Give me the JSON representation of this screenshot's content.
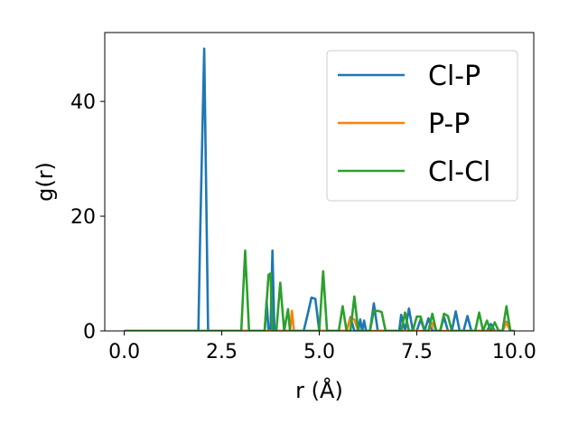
{
  "chart_data": {
    "type": "line",
    "title": "",
    "xlabel": "r (Å)",
    "ylabel": "g(r)",
    "xlim": [
      -0.5,
      10.5
    ],
    "ylim": [
      0,
      52
    ],
    "xticks": [
      0.0,
      2.5,
      5.0,
      7.5,
      10.0
    ],
    "xtick_labels": [
      "0.0",
      "2.5",
      "5.0",
      "7.5",
      "10.0"
    ],
    "yticks": [
      0,
      20,
      40
    ],
    "ytick_labels": [
      "0",
      "20",
      "40"
    ],
    "grid": false,
    "legend_position": "top-right",
    "series": [
      {
        "name": "Cl-P",
        "color": "#1f77b4",
        "x": [
          0.0,
          1.9,
          1.95,
          2.05,
          2.15,
          2.2,
          3.5,
          3.6,
          3.65,
          3.7,
          3.75,
          3.8,
          3.85,
          3.9,
          4.3,
          4.5,
          4.6,
          4.7,
          4.8,
          4.9,
          5.0,
          5.1,
          5.5,
          5.6,
          5.7,
          5.8,
          5.9,
          6.0,
          6.05,
          6.1,
          6.15,
          6.2,
          6.3,
          6.4,
          6.5,
          6.55,
          6.6,
          6.7,
          6.8,
          6.9,
          7.0,
          7.05,
          7.1,
          7.2,
          7.3,
          7.4,
          7.5,
          7.6,
          7.7,
          7.8,
          7.9,
          8.0,
          8.1,
          8.2,
          8.3,
          8.4,
          8.5,
          8.6,
          8.7,
          8.8,
          8.9,
          9.0,
          9.1,
          9.2,
          9.3,
          9.4,
          9.5,
          9.6,
          9.7,
          9.8,
          9.9
        ],
        "y": [
          0,
          0,
          18,
          49.2,
          0,
          0,
          0,
          0,
          5.2,
          0,
          0,
          14,
          0,
          0,
          0,
          0,
          0,
          2.8,
          5.8,
          5.6,
          0,
          0,
          0,
          0,
          0,
          2.4,
          0,
          0,
          2.0,
          0,
          1.8,
          0,
          0,
          4.8,
          0,
          0,
          0,
          0,
          0,
          0,
          0,
          0,
          2.8,
          0,
          3.9,
          0,
          0,
          2.0,
          0,
          2.2,
          0,
          0,
          0,
          2.4,
          0,
          0,
          3.4,
          0,
          0,
          2.6,
          0,
          0,
          0,
          0,
          0,
          1.2,
          0,
          0,
          0,
          1.6,
          0
        ]
      },
      {
        "name": "P-P",
        "color": "#ff7f0e",
        "x": [
          0.0,
          4.15,
          4.25,
          4.3,
          4.35,
          5.7,
          5.8,
          5.9,
          6.0,
          7.8,
          7.9,
          8.0,
          9.7,
          9.8,
          9.9,
          10.0
        ],
        "y": [
          0,
          0,
          0,
          3.5,
          0,
          0,
          2.2,
          2.0,
          0,
          0,
          1.4,
          0,
          0,
          1.5,
          0,
          0
        ]
      },
      {
        "name": "Cl-Cl",
        "color": "#2ca02c",
        "x": [
          0.0,
          3.0,
          3.1,
          3.2,
          3.5,
          3.6,
          3.7,
          3.75,
          3.8,
          3.9,
          4.0,
          4.1,
          4.2,
          4.25,
          4.3,
          4.9,
          5.0,
          5.1,
          5.2,
          5.5,
          5.6,
          5.7,
          5.8,
          5.9,
          6.0,
          6.1,
          6.2,
          6.3,
          6.4,
          6.5,
          6.6,
          6.7,
          7.1,
          7.2,
          7.3,
          7.4,
          7.5,
          7.6,
          7.7,
          7.8,
          7.9,
          8.0,
          8.1,
          8.2,
          8.3,
          8.4,
          8.5,
          8.6,
          8.7,
          8.8,
          8.9,
          9.0,
          9.1,
          9.2,
          9.3,
          9.4,
          9.5,
          9.6,
          9.7,
          9.8,
          9.9,
          10.0
        ],
        "y": [
          0,
          0,
          14,
          0,
          0,
          0,
          9.8,
          10,
          0,
          0,
          8.4,
          0,
          3.8,
          0,
          0,
          0,
          0,
          10.4,
          0,
          0,
          4.3,
          0,
          0,
          6.0,
          0,
          0,
          0,
          0,
          3.5,
          3.5,
          3.3,
          0,
          0,
          3.2,
          0,
          0,
          2.5,
          2.5,
          0,
          0,
          3.0,
          0,
          0,
          3.0,
          2.6,
          0,
          0,
          0,
          0,
          0,
          0,
          0,
          3.2,
          0,
          1.8,
          0,
          1.5,
          0,
          0,
          4.3,
          0,
          0
        ]
      }
    ]
  }
}
